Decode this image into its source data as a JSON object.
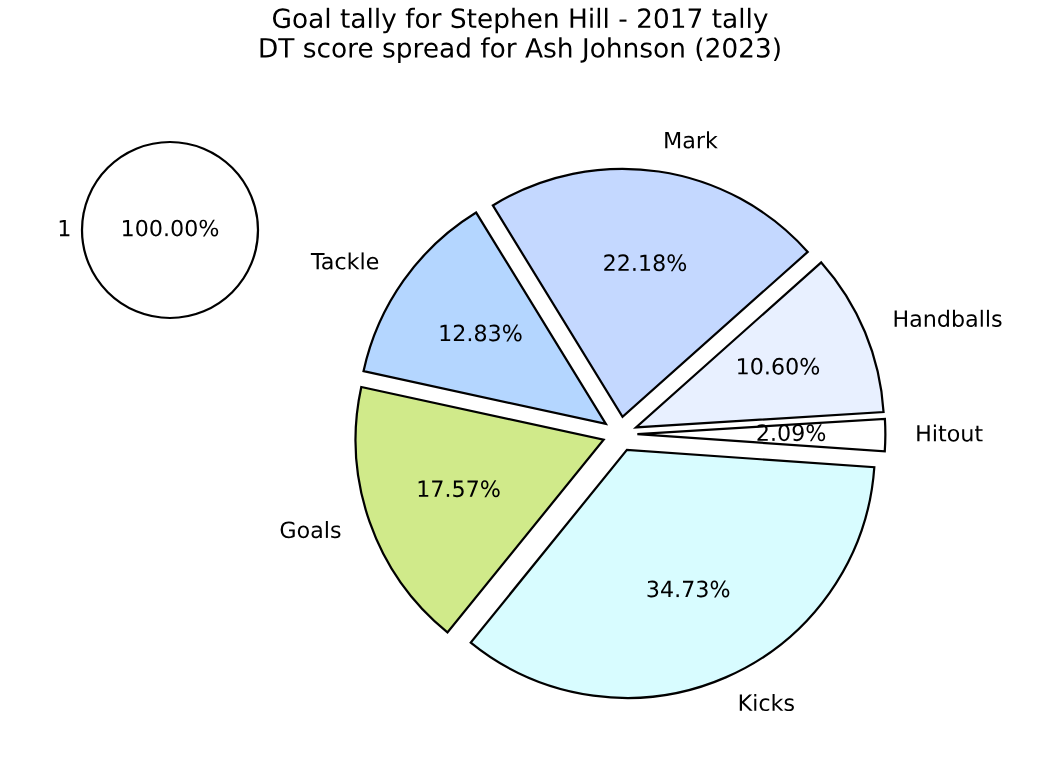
{
  "chart_data": [
    {
      "type": "pie",
      "categories": [
        "1"
      ],
      "values": [
        100
      ],
      "value_labels": [
        "100.00%"
      ],
      "colors": [
        "#ffffff"
      ]
    },
    {
      "type": "pie",
      "title": "Goal tally for Stephen Hill - 2017 tally\nDT score spread for Ash Johnson (2023)",
      "categories": [
        "Hitout",
        "Handballs",
        "Mark",
        "Tackle",
        "Goals",
        "Kicks"
      ],
      "values": [
        2.09,
        10.6,
        22.18,
        12.83,
        17.57,
        34.73
      ],
      "value_labels": [
        "2.09%",
        "10.60%",
        "22.18%",
        "12.83%",
        "17.57%",
        "34.73%"
      ],
      "colors": [
        "#ffffff",
        "#e8f0ff",
        "#c4d8ff",
        "#b4d6ff",
        "#d0ea8a",
        "#d8fcff"
      ]
    }
  ]
}
